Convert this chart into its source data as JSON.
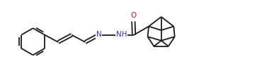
{
  "background_color": "#ffffff",
  "line_color": "#1a1a1a",
  "n_color": "#3333bb",
  "o_color": "#cc2200",
  "line_width": 1.3,
  "figsize": [
    3.87,
    1.18
  ],
  "dpi": 100,
  "xlim": [
    0,
    10.5
  ],
  "ylim": [
    0,
    2.85
  ]
}
